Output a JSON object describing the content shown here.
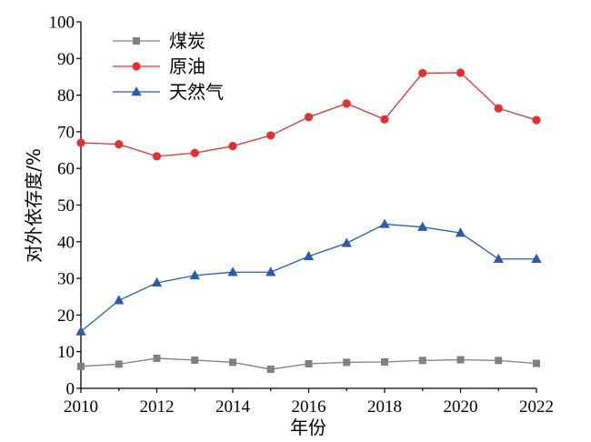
{
  "chart_data": {
    "type": "line",
    "xlabel": "年份",
    "ylabel": "对外依存度/%",
    "xlim": [
      2010,
      2022
    ],
    "ylim": [
      0,
      100
    ],
    "x_ticks": [
      2010,
      2012,
      2014,
      2016,
      2018,
      2020,
      2022
    ],
    "y_ticks": [
      0,
      10,
      20,
      30,
      40,
      50,
      60,
      70,
      80,
      90,
      100
    ],
    "grid": false,
    "legend_position": "top-left",
    "x": [
      2010,
      2011,
      2012,
      2013,
      2014,
      2015,
      2016,
      2017,
      2018,
      2019,
      2020,
      2021,
      2022
    ],
    "series": [
      {
        "name": "煤炭",
        "color": "#808080",
        "marker": "square",
        "values": [
          6.0,
          6.6,
          8.2,
          7.7,
          7.1,
          5.2,
          6.7,
          7.1,
          7.2,
          7.6,
          7.8,
          7.6,
          6.8
        ]
      },
      {
        "name": "原油",
        "color": "#e03030",
        "marker": "circle",
        "values": [
          67.0,
          66.6,
          63.3,
          64.2,
          66.1,
          69.0,
          74.0,
          77.7,
          73.4,
          86.0,
          86.1,
          76.4,
          73.2
        ]
      },
      {
        "name": "天然气",
        "color": "#2a5caa",
        "marker": "triangle",
        "values": [
          15.5,
          24.0,
          28.8,
          30.8,
          31.7,
          31.7,
          36.0,
          39.6,
          44.8,
          44.0,
          42.4,
          35.3,
          35.3
        ]
      }
    ]
  }
}
